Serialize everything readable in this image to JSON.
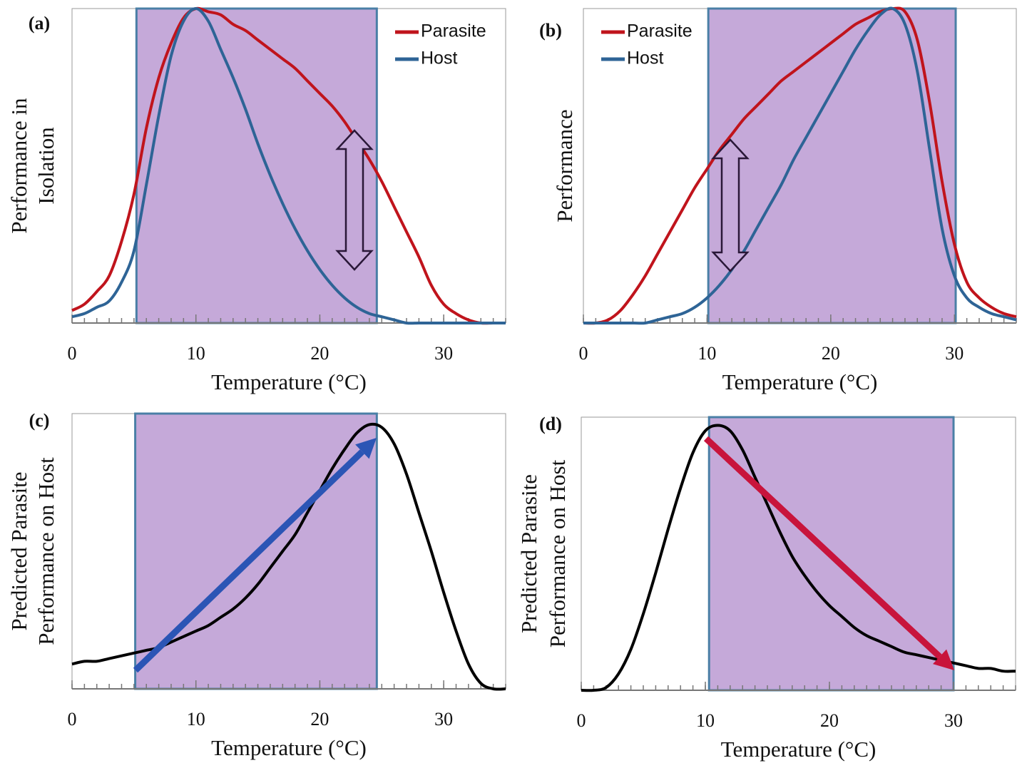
{
  "chart_data": [
    {
      "type": "line",
      "panel_label": "(a)",
      "x_label": "Temperature (°C)",
      "y_label": [
        "Performance in",
        "Isolation"
      ],
      "x": [
        0,
        1,
        2,
        3,
        4,
        5,
        6,
        7,
        8,
        9,
        10,
        11,
        12,
        13,
        14,
        15,
        16,
        17,
        18,
        19,
        20,
        21,
        22,
        23,
        24,
        25,
        26,
        27,
        28,
        29,
        30,
        31,
        32,
        33,
        34,
        35
      ],
      "series": [
        {
          "name": "Parasite",
          "color": "#c0141c",
          "values": [
            0.04,
            0.06,
            0.1,
            0.15,
            0.26,
            0.41,
            0.62,
            0.78,
            0.89,
            0.97,
            1.0,
            0.99,
            0.98,
            0.95,
            0.93,
            0.9,
            0.87,
            0.84,
            0.81,
            0.77,
            0.73,
            0.69,
            0.64,
            0.58,
            0.52,
            0.45,
            0.37,
            0.29,
            0.21,
            0.12,
            0.06,
            0.03,
            0.01,
            0,
            0,
            0
          ]
        },
        {
          "name": "Host",
          "color": "#2e6496",
          "values": [
            0.02,
            0.03,
            0.05,
            0.07,
            0.13,
            0.23,
            0.44,
            0.66,
            0.85,
            0.96,
            1.0,
            0.96,
            0.87,
            0.78,
            0.68,
            0.57,
            0.47,
            0.38,
            0.3,
            0.23,
            0.17,
            0.12,
            0.08,
            0.05,
            0.03,
            0.02,
            0.01,
            0,
            0,
            0,
            0,
            0,
            0,
            0,
            0,
            0
          ]
        }
      ],
      "xlim": [
        0,
        35
      ],
      "ylim": [
        0,
        1
      ],
      "xticks": [
        0,
        10,
        20,
        30
      ],
      "x_minor_ticks": [
        0,
        1,
        2,
        3,
        4,
        5,
        6,
        7,
        8,
        9,
        10,
        11,
        12,
        13,
        14,
        15,
        16,
        17,
        18,
        19,
        20,
        21,
        22,
        23,
        24,
        25,
        26,
        27,
        28,
        29,
        30,
        31,
        32,
        33,
        34,
        35
      ],
      "band": [
        5.2,
        24.6
      ],
      "band_color": "#c5a9d9",
      "legend": "top-right"
    },
    {
      "type": "line",
      "panel_label": "(b)",
      "x_label": "Temperature (°C)",
      "y_label": [
        "Performance"
      ],
      "x": [
        0,
        1,
        2,
        3,
        4,
        5,
        6,
        7,
        8,
        9,
        10,
        11,
        12,
        13,
        14,
        15,
        16,
        17,
        18,
        19,
        20,
        21,
        22,
        23,
        24,
        25,
        26,
        27,
        28,
        29,
        30,
        31,
        32,
        33,
        34,
        35
      ],
      "series": [
        {
          "name": "Parasite",
          "color": "#c0141c",
          "values": [
            0,
            0,
            0.01,
            0.04,
            0.09,
            0.15,
            0.22,
            0.29,
            0.36,
            0.43,
            0.49,
            0.55,
            0.6,
            0.65,
            0.69,
            0.73,
            0.77,
            0.8,
            0.83,
            0.86,
            0.89,
            0.92,
            0.95,
            0.97,
            0.99,
            1.0,
            0.99,
            0.9,
            0.7,
            0.45,
            0.25,
            0.13,
            0.08,
            0.05,
            0.03,
            0.02
          ]
        },
        {
          "name": "Host",
          "color": "#2e6496",
          "values": [
            0,
            0,
            0,
            0,
            0,
            0,
            0.01,
            0.02,
            0.03,
            0.05,
            0.08,
            0.12,
            0.17,
            0.23,
            0.3,
            0.37,
            0.44,
            0.52,
            0.59,
            0.66,
            0.73,
            0.8,
            0.87,
            0.93,
            0.98,
            1.0,
            0.95,
            0.8,
            0.55,
            0.3,
            0.15,
            0.08,
            0.05,
            0.03,
            0.02,
            0.01
          ]
        }
      ],
      "xlim": [
        0,
        35
      ],
      "ylim": [
        0,
        1
      ],
      "xticks": [
        0,
        10,
        20,
        30
      ],
      "x_minor_ticks": [
        0,
        1,
        2,
        3,
        4,
        5,
        6,
        7,
        8,
        9,
        10,
        11,
        12,
        13,
        14,
        15,
        16,
        17,
        18,
        19,
        20,
        21,
        22,
        23,
        24,
        25,
        26,
        27,
        28,
        29,
        30,
        31,
        32,
        33,
        34,
        35
      ],
      "band": [
        10.1,
        30.1
      ],
      "band_color": "#c5a9d9",
      "legend": "top-left"
    },
    {
      "type": "line",
      "panel_label": "(c)",
      "x_label": "Temperature (°C)",
      "y_label": [
        "Predicted Parasite",
        "Performance on Host"
      ],
      "x": [
        0,
        1,
        2,
        3,
        4,
        5,
        6,
        7,
        8,
        9,
        10,
        11,
        12,
        13,
        14,
        15,
        16,
        17,
        18,
        19,
        20,
        21,
        22,
        23,
        24,
        25,
        26,
        27,
        28,
        29,
        30,
        31,
        32,
        33,
        34,
        35
      ],
      "series": [
        {
          "color": "#000000",
          "values": [
            0.09,
            0.1,
            0.1,
            0.11,
            0.12,
            0.13,
            0.14,
            0.15,
            0.17,
            0.19,
            0.21,
            0.23,
            0.26,
            0.29,
            0.33,
            0.38,
            0.44,
            0.5,
            0.56,
            0.64,
            0.72,
            0.8,
            0.87,
            0.93,
            0.96,
            0.95,
            0.89,
            0.78,
            0.64,
            0.5,
            0.35,
            0.21,
            0.09,
            0.02,
            0,
            0
          ]
        }
      ],
      "xlim": [
        0,
        35
      ],
      "ylim": [
        0,
        1
      ],
      "xticks": [
        0,
        10,
        20,
        30
      ],
      "x_minor_ticks": [
        0,
        1,
        2,
        3,
        4,
        5,
        6,
        7,
        8,
        9,
        10,
        11,
        12,
        13,
        14,
        15,
        16,
        17,
        18,
        19,
        20,
        21,
        22,
        23,
        24,
        25,
        26,
        27,
        28,
        29,
        30,
        31,
        32,
        33,
        34,
        35
      ],
      "band": [
        5.1,
        24.6
      ],
      "band_color": "#c5a9d9"
    },
    {
      "type": "line",
      "panel_label": "(d)",
      "x_label": "Temperature (°C)",
      "y_label": [
        "Predicted Parasite",
        "Performance on Host"
      ],
      "x": [
        0,
        1,
        2,
        3,
        4,
        5,
        6,
        7,
        8,
        9,
        10,
        11,
        12,
        13,
        14,
        15,
        16,
        17,
        18,
        19,
        20,
        21,
        22,
        23,
        24,
        25,
        26,
        27,
        28,
        29,
        30,
        31,
        32,
        33,
        34,
        35
      ],
      "series": [
        {
          "color": "#000000",
          "values": [
            0,
            0,
            0.01,
            0.06,
            0.15,
            0.28,
            0.43,
            0.59,
            0.74,
            0.87,
            0.95,
            0.97,
            0.95,
            0.88,
            0.78,
            0.68,
            0.58,
            0.49,
            0.42,
            0.36,
            0.31,
            0.27,
            0.23,
            0.2,
            0.18,
            0.16,
            0.14,
            0.13,
            0.12,
            0.11,
            0.1,
            0.09,
            0.08,
            0.08,
            0.07,
            0.07
          ]
        }
      ],
      "xlim": [
        0,
        35
      ],
      "ylim": [
        0,
        1
      ],
      "xticks": [
        0,
        10,
        20,
        30
      ],
      "x_minor_ticks": [
        0,
        1,
        2,
        3,
        4,
        5,
        6,
        7,
        8,
        9,
        10,
        11,
        12,
        13,
        14,
        15,
        16,
        17,
        18,
        19,
        20,
        21,
        22,
        23,
        24,
        25,
        26,
        27,
        28,
        29,
        30,
        31,
        32,
        33,
        34,
        35
      ],
      "band": [
        10.3,
        30
      ],
      "band_color": "#c5a9d9"
    }
  ]
}
